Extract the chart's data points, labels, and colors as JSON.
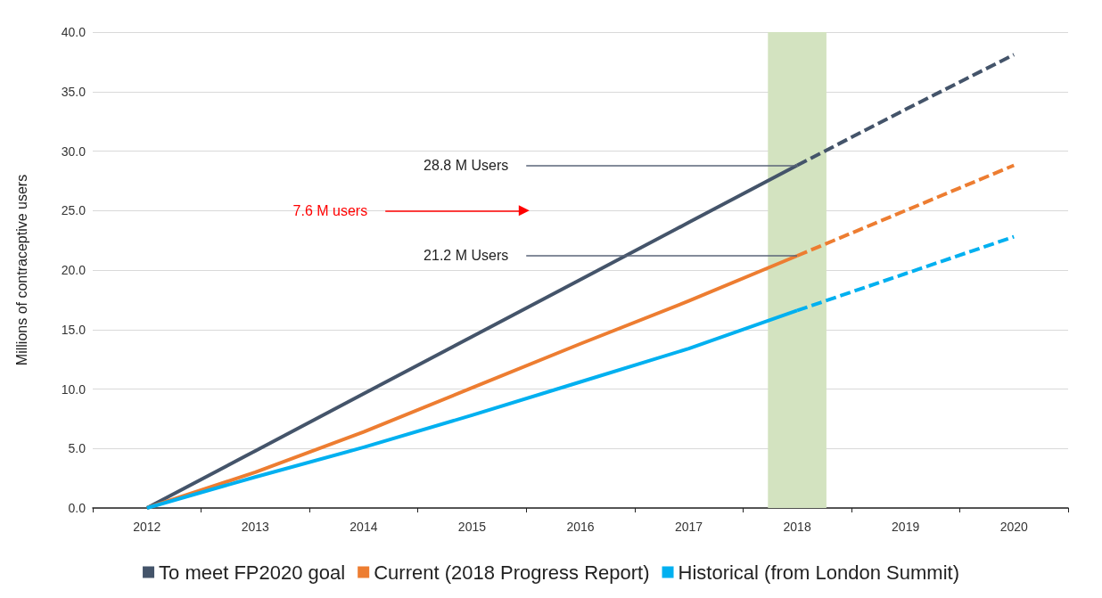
{
  "chart_data": {
    "type": "line",
    "ylabel": "Millions of contraceptive users",
    "categories": [
      "2012",
      "2013",
      "2014",
      "2015",
      "2016",
      "2017",
      "2018",
      "2019",
      "2020"
    ],
    "series": [
      {
        "name": "To meet FP2020 goal",
        "color": "#44546a",
        "line_style": "solid",
        "values": [
          0,
          4.8,
          9.6,
          14.4,
          19.2,
          24.0,
          28.8,
          null,
          null
        ]
      },
      {
        "name": "Current (2018 Progress Report)",
        "color": "#ed7d31",
        "line_style": "solid",
        "values": [
          0,
          3.0,
          6.4,
          10.1,
          13.8,
          17.4,
          21.2,
          null,
          null
        ]
      },
      {
        "name": "Historical (from London Summit)",
        "color": "#00b0f0",
        "line_style": "solid",
        "values": [
          0,
          2.6,
          5.1,
          7.8,
          10.6,
          13.4,
          16.6,
          null,
          null
        ]
      },
      {
        "color": "#44546a",
        "line_style": "dashed",
        "values": [
          null,
          null,
          null,
          null,
          null,
          null,
          28.8,
          33.5,
          38.1
        ]
      },
      {
        "color": "#ed7d31",
        "line_style": "dashed",
        "values": [
          null,
          null,
          null,
          null,
          null,
          null,
          21.2,
          25.0,
          28.8
        ]
      },
      {
        "color": "#00b0f0",
        "line_style": "dashed",
        "values": [
          null,
          null,
          null,
          null,
          null,
          null,
          16.6,
          19.7,
          22.8
        ]
      }
    ],
    "ylim": [
      0,
      40
    ],
    "yticks": [
      {
        "value": 0,
        "label": "0.0"
      },
      {
        "value": 5,
        "label": "5.0"
      },
      {
        "value": 10,
        "label": "10.0"
      },
      {
        "value": 15,
        "label": "15.0"
      },
      {
        "value": 20,
        "label": "20.0"
      },
      {
        "value": 25,
        "label": "25.0"
      },
      {
        "value": 30,
        "label": "30.0"
      },
      {
        "value": 35,
        "label": "35.0"
      },
      {
        "value": 40,
        "label": "40.0"
      }
    ],
    "bands": [
      {
        "axis": "x",
        "from": "2018",
        "to": "2018",
        "color": "#d3e3c0"
      }
    ],
    "annotations": [
      {
        "text": "28.8 M Users",
        "x": "2018",
        "y": 28.8
      },
      {
        "text": "21.2 M Users",
        "x": "2018",
        "y": 21.2
      },
      "7.6 M users"
    ],
    "grid": "y",
    "legend": "bottom",
    "marker": "none"
  }
}
